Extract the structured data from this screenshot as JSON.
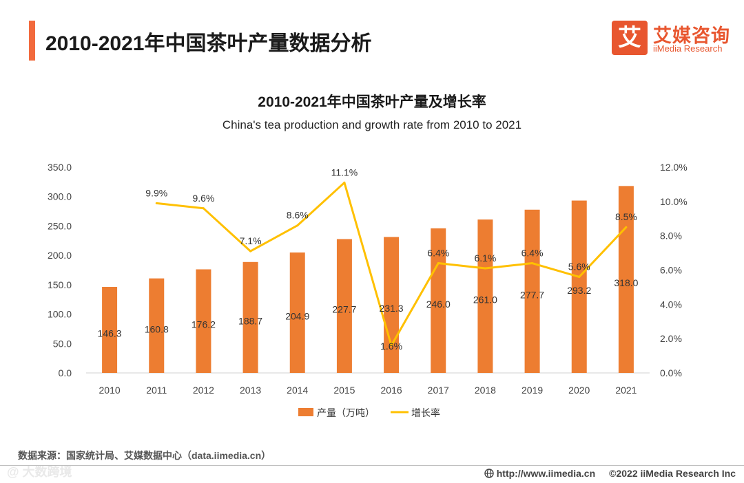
{
  "header": {
    "title": "2010-2021年中国茶叶产量数据分析",
    "brand_mark": "艾",
    "brand_cn": "艾媒咨询",
    "brand_en": "iiMedia Research"
  },
  "chart_data": {
    "type": "bar+line",
    "title": "2010-2021年中国茶叶产量及增长率",
    "subtitle": "China's tea production and growth rate from 2010 to 2021",
    "categories": [
      "2010",
      "2011",
      "2012",
      "2013",
      "2014",
      "2015",
      "2016",
      "2017",
      "2018",
      "2019",
      "2020",
      "2021"
    ],
    "series": [
      {
        "name": "产量（万吨）",
        "type": "bar",
        "axis": "left",
        "color": "#ed7d31",
        "values": [
          146.3,
          160.8,
          176.2,
          188.7,
          204.9,
          227.7,
          231.3,
          246.0,
          261.0,
          277.7,
          293.2,
          318.0
        ],
        "labels": [
          "146.3",
          "160.8",
          "176.2",
          "188.7",
          "204.9",
          "227.7",
          "231.3",
          "246.0",
          "261.0",
          "277.7",
          "293.2",
          "318.0"
        ]
      },
      {
        "name": "增长率",
        "type": "line",
        "axis": "right",
        "color": "#ffc000",
        "values": [
          null,
          9.9,
          9.6,
          7.1,
          8.6,
          11.1,
          1.6,
          6.4,
          6.1,
          6.4,
          5.6,
          8.5
        ],
        "labels": [
          "",
          "9.9%",
          "9.6%",
          "7.1%",
          "8.6%",
          "11.1%",
          "1.6%",
          "6.4%",
          "6.1%",
          "6.4%",
          "5.6%",
          "8.5%"
        ]
      }
    ],
    "y_left": {
      "min": 0,
      "max": 350,
      "ticks": [
        "0.0",
        "50.0",
        "100.0",
        "150.0",
        "200.0",
        "250.0",
        "300.0",
        "350.0"
      ]
    },
    "y_right": {
      "min": 0,
      "max": 12,
      "ticks": [
        "0.0%",
        "2.0%",
        "4.0%",
        "6.0%",
        "8.0%",
        "10.0%",
        "12.0%"
      ]
    },
    "grid": false,
    "legend_position": "bottom"
  },
  "footer": {
    "source": "数据来源：国家统计局、艾媒数据中心（data.iimedia.cn）",
    "watermark": "@ 大数跨境",
    "website": "http://www.iimedia.cn",
    "copyright": "©2022  iiMedia Research  Inc"
  }
}
